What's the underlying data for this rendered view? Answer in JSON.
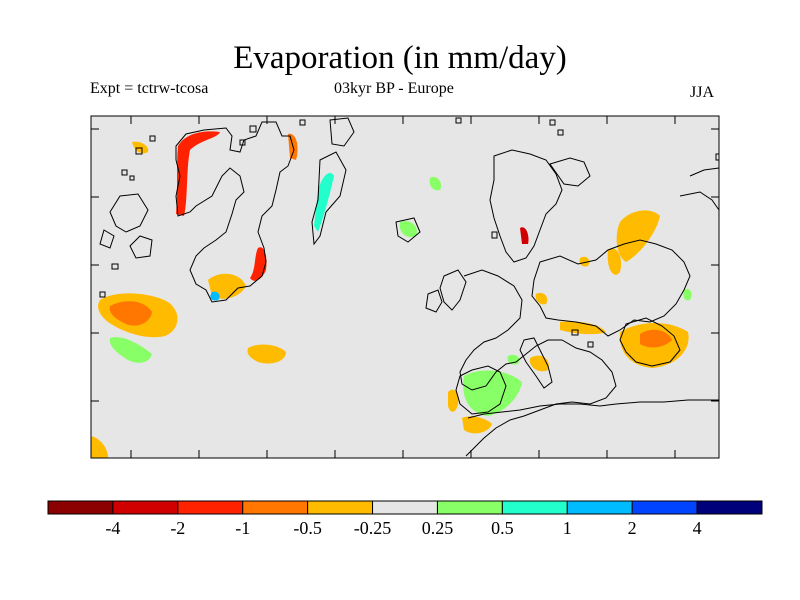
{
  "header": {
    "title": "Evaporation (in mm/day)",
    "left": "Expt = tctrw-tcosa",
    "center": "03kyr BP - Europe",
    "right": "JJA"
  },
  "colors": {
    "background": "#e6e6e6",
    "coast": "#000000",
    "palette": [
      "#8b0000",
      "#d10000",
      "#ff2200",
      "#ff7700",
      "#ffbb00",
      "#e6e6e6",
      "#88ff66",
      "#22ffcc",
      "#00bbff",
      "#0044ff",
      "#00007a"
    ]
  },
  "colorbar": {
    "tick_labels": [
      "-4",
      "-2",
      "-1",
      "-0.5",
      "-0.25",
      "0.25",
      "0.5",
      "1",
      "2",
      "4"
    ]
  }
}
